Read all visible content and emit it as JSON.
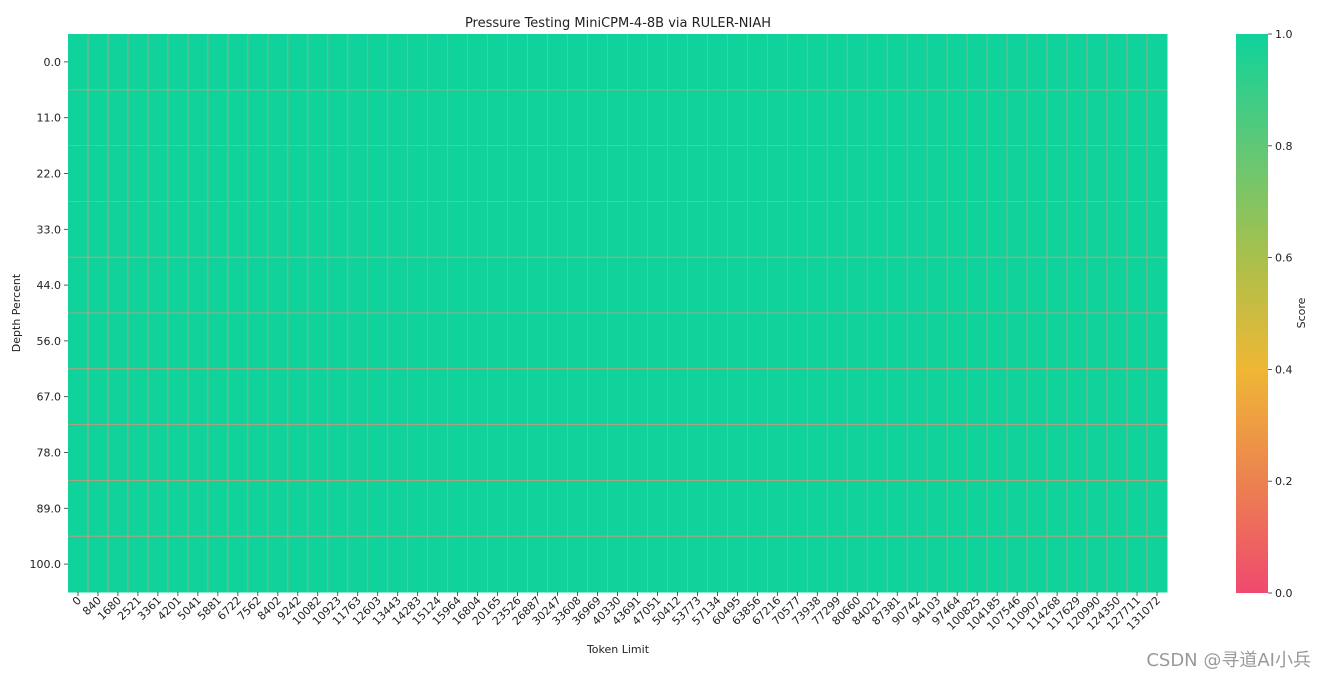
{
  "chart_data": {
    "type": "heatmap",
    "title": "Pressure Testing MiniCPM-4-8B via RULER-NIAH",
    "xlabel": "Token Limit",
    "ylabel": "Depth Percent",
    "x_categories": [
      "0",
      "840",
      "1680",
      "2521",
      "3361",
      "4201",
      "5041",
      "5881",
      "6722",
      "7562",
      "8402",
      "9242",
      "10082",
      "10923",
      "11763",
      "12603",
      "13443",
      "14283",
      "15124",
      "15964",
      "16804",
      "20165",
      "23526",
      "26887",
      "30247",
      "33608",
      "36969",
      "40330",
      "43691",
      "47051",
      "50412",
      "53773",
      "57134",
      "60495",
      "63856",
      "67216",
      "70577",
      "73938",
      "77299",
      "80660",
      "84021",
      "87381",
      "90742",
      "94103",
      "97464",
      "100825",
      "104185",
      "107546",
      "110907",
      "114268",
      "117629",
      "120990",
      "124350",
      "127711",
      "131072"
    ],
    "y_categories": [
      "0.0",
      "11.0",
      "22.0",
      "33.0",
      "44.0",
      "56.0",
      "67.0",
      "78.0",
      "89.0",
      "100.0"
    ],
    "values_fill": 1.0,
    "colorbar": {
      "label": "Score",
      "range": [
        0.0,
        1.0
      ],
      "ticks": [
        "0.0",
        "0.2",
        "0.4",
        "0.6",
        "0.8",
        "1.0"
      ],
      "colors": [
        "#f0496e",
        "#ec8250",
        "#efb735",
        "#a9c04c",
        "#5fc877",
        "#0fd39b"
      ]
    },
    "cell_color": "#0fd39b",
    "grid_line_color": "#d9947c"
  },
  "watermark": "CSDN @寻道AI小兵"
}
